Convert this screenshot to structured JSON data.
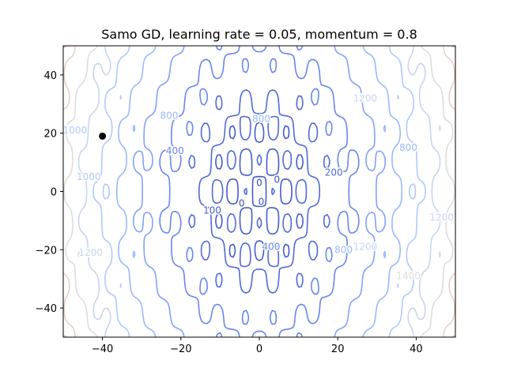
{
  "chart_data": {
    "type": "contour",
    "title": "Samo GD, learning rate = 0.05, momentum = 0.8",
    "xlabel": "",
    "ylabel": "",
    "xlim": [
      -50,
      50
    ],
    "ylim": [
      -50,
      50
    ],
    "x_ticks": [
      -40,
      -20,
      0,
      20,
      40
    ],
    "y_ticks": [
      -40,
      -20,
      0,
      20,
      40
    ],
    "colormap": "coolwarm",
    "contour_levels": [
      0,
      100,
      200,
      400,
      600,
      800,
      1000,
      1200,
      1400,
      1600,
      1800,
      2000,
      2200,
      2400,
      2600,
      2800
    ],
    "contour_labels": [
      {
        "text": "0",
        "x": 4.5,
        "y": 4
      },
      {
        "text": "0",
        "x": 0,
        "y": 3
      },
      {
        "text": "0",
        "x": 0.5,
        "y": -3.5
      },
      {
        "text": "0",
        "x": -4.5,
        "y": -4
      },
      {
        "text": "100",
        "x": -12,
        "y": -6.5
      },
      {
        "text": "200",
        "x": 19,
        "y": 6.5
      },
      {
        "text": "400",
        "x": -21.5,
        "y": 14
      },
      {
        "text": "400",
        "x": 3,
        "y": -19
      },
      {
        "text": "800",
        "x": 38,
        "y": 15
      },
      {
        "text": "800",
        "x": 21.5,
        "y": -20
      },
      {
        "text": "800",
        "x": -23,
        "y": 26
      },
      {
        "text": "800",
        "x": 0.5,
        "y": 25
      },
      {
        "text": "1000",
        "x": -43.5,
        "y": 5
      },
      {
        "text": "1000",
        "x": -47,
        "y": 21
      },
      {
        "text": "1200",
        "x": 46.5,
        "y": -9
      },
      {
        "text": "1200",
        "x": 27,
        "y": -19
      },
      {
        "text": "1200",
        "x": -43,
        "y": -21
      },
      {
        "text": "1200",
        "x": 27,
        "y": 32
      },
      {
        "text": "1400",
        "x": 38,
        "y": -29
      }
    ],
    "point": {
      "x": -40,
      "y": 19
    }
  },
  "colors": {
    "low": "#3b4cc0",
    "mid": "#dddddd",
    "high": "#b40426",
    "point": "#000000"
  }
}
